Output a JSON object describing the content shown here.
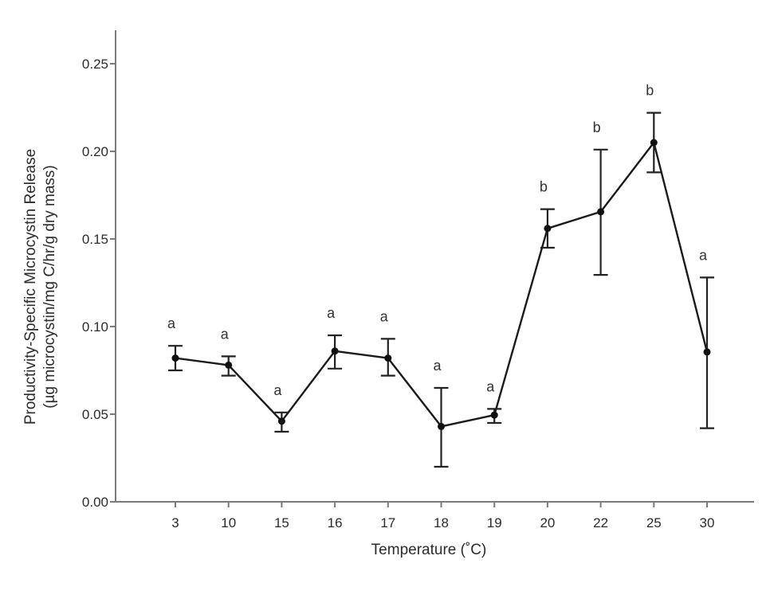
{
  "chart_data": {
    "type": "line",
    "title": "",
    "xlabel": "Temperature (˚C)",
    "ylabel_lines": [
      "Productivity-Specific Microcystin Release",
      "(µg microcystin/mg C/hr/g dry mass)"
    ],
    "ylim": [
      0,
      0.27
    ],
    "yticks": [
      "0.00",
      "0.05",
      "0.10",
      "0.15",
      "0.20",
      "0.25"
    ],
    "ytick_values": [
      0,
      0.05,
      0.1,
      0.15,
      0.2,
      0.25
    ],
    "categories": [
      "3",
      "10",
      "15",
      "16",
      "17",
      "18",
      "19",
      "20",
      "22",
      "25",
      "30"
    ],
    "grid": false,
    "legend": "none",
    "series": [
      {
        "name": "Microcystin release",
        "values": [
          0.082,
          0.078,
          0.046,
          0.086,
          0.082,
          0.043,
          0.0495,
          0.156,
          0.1655,
          0.205,
          0.0855
        ],
        "error_upper": [
          0.089,
          0.083,
          0.051,
          0.095,
          0.093,
          0.065,
          0.053,
          0.167,
          0.201,
          0.222,
          0.128
        ],
        "error_lower": [
          0.075,
          0.072,
          0.04,
          0.076,
          0.072,
          0.02,
          0.045,
          0.145,
          0.1295,
          0.188,
          0.042
        ],
        "significance": [
          "a",
          "a",
          "a",
          "a",
          "a",
          "a",
          "a",
          "b",
          "b",
          "b",
          "a"
        ]
      }
    ],
    "colors": {
      "line": "#1a1a1a",
      "axis": "#7a7a7a",
      "text": "#2b2b2b"
    }
  }
}
